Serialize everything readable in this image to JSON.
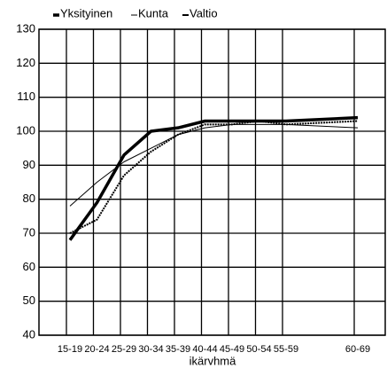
{
  "chart_data": {
    "type": "line",
    "x_label": "ikärvhmä",
    "categories": [
      "15-19",
      "20-24",
      "25-29",
      "30-34",
      "35-39",
      "40-44",
      "45-49",
      "50-54",
      "55-59",
      "60-69"
    ],
    "series": [
      {
        "name": "Yksityinen",
        "color": "#000000",
        "values": [
          68,
          79,
          93,
          100,
          101,
          103,
          103,
          103,
          103,
          104
        ]
      },
      {
        "name": "Kunta",
        "color": "#000000",
        "values": [
          78,
          85,
          91,
          95,
          99,
          101,
          102,
          102,
          102,
          101
        ]
      },
      {
        "name": "Valtio",
        "color": "#000000",
        "values": [
          70,
          74,
          87,
          94,
          99,
          102,
          102,
          103,
          102,
          103
        ]
      }
    ],
    "ylim": [
      40,
      130
    ],
    "yticks": [
      40,
      50,
      60,
      70,
      80,
      90,
      100,
      110,
      120,
      130
    ],
    "grid": true
  }
}
